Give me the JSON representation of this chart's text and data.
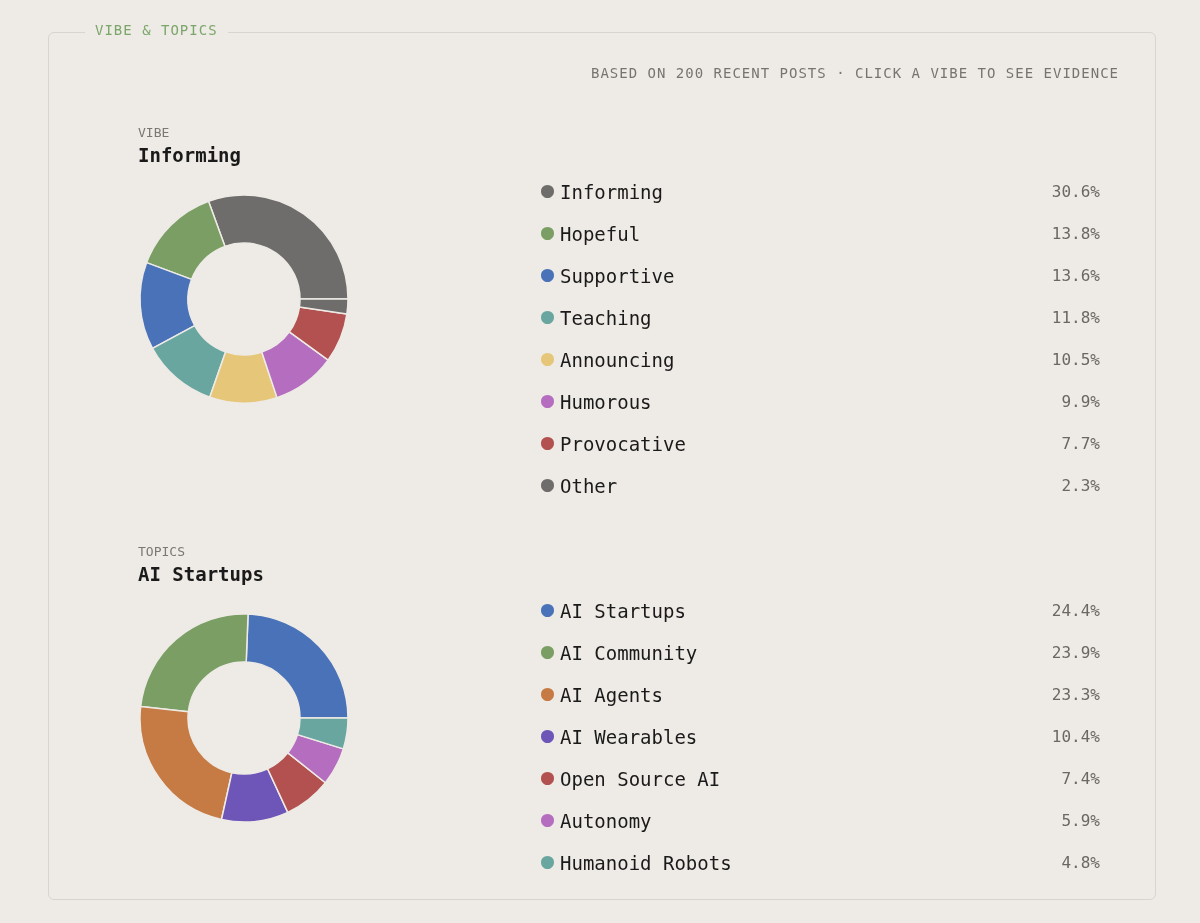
{
  "chart_data": [
    {
      "type": "donut",
      "title": "VIBE",
      "subtitle": "Informing",
      "annotations": [
        "VIBE & TOPICS",
        "BASED ON 200 RECENT POSTS · CLICK A VIBE TO SEE EVIDENCE"
      ],
      "categories": [
        "Informing",
        "Hopeful",
        "Supportive",
        "Teaching",
        "Announcing",
        "Humorous",
        "Provocative",
        "Other"
      ],
      "values": [
        30.6,
        13.8,
        13.6,
        11.8,
        10.5,
        9.9,
        7.7,
        2.3
      ],
      "value_labels": [
        "30.6%",
        "13.8%",
        "13.6%",
        "11.8%",
        "10.5%",
        "9.9%",
        "7.7%",
        "2.3%"
      ],
      "colors": [
        "#6f6d6b",
        "#7a9e63",
        "#4a72b8",
        "#6aa6a0",
        "#e6c679",
        "#b46dbf",
        "#b25150",
        "#6f6d6b"
      ],
      "legend": "right"
    },
    {
      "type": "donut",
      "title": "TOPICS",
      "subtitle": "AI Startups",
      "categories": [
        "AI Startups",
        "AI Community",
        "AI Agents",
        "AI Wearables",
        "Open Source AI",
        "Autonomy",
        "Humanoid Robots"
      ],
      "values": [
        24.4,
        23.9,
        23.3,
        10.4,
        7.4,
        5.9,
        4.8
      ],
      "value_labels": [
        "24.4%",
        "23.9%",
        "23.3%",
        "10.4%",
        "7.4%",
        "5.9%",
        "4.8%"
      ],
      "colors": [
        "#4a72b8",
        "#7a9e63",
        "#c67b45",
        "#6e55b8",
        "#b25150",
        "#b46dbf",
        "#6aa6a0"
      ],
      "legend": "right"
    }
  ]
}
